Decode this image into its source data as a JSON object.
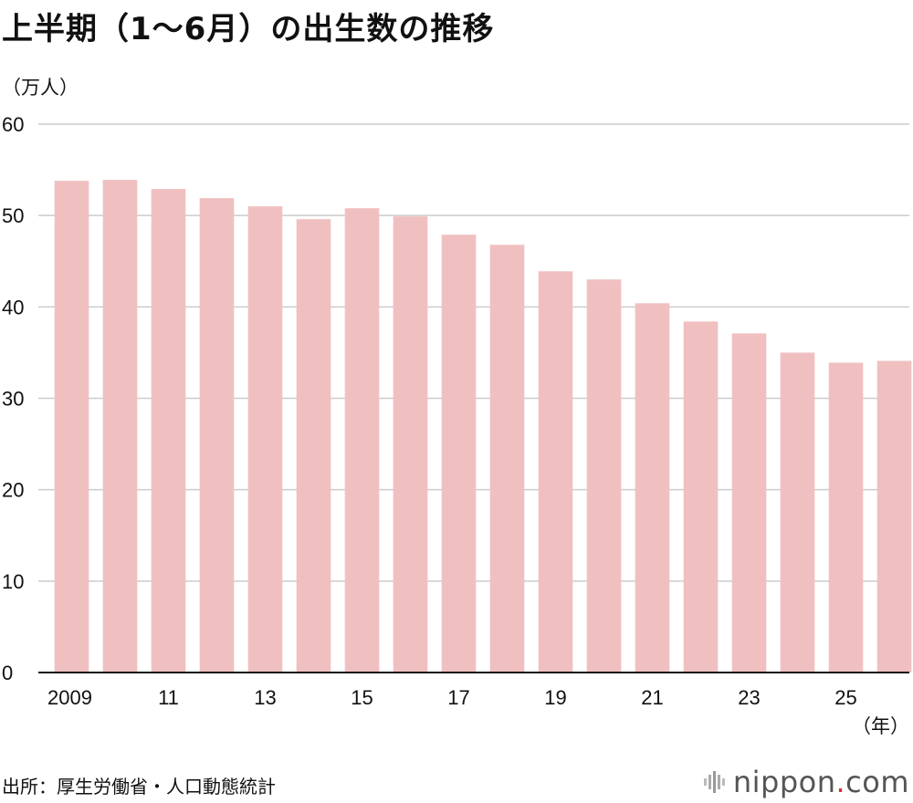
{
  "title": "上半期（1〜6月）の出生数の推移",
  "y_unit": "（万人）",
  "x_unit": "（年）",
  "source": "出所：厚生労働省・人口動態統計",
  "logo": {
    "word": "nippon",
    "dot": ".",
    "tld": "com"
  },
  "chart_data": {
    "type": "bar",
    "categories": [
      "2009",
      "2010",
      "2011",
      "2012",
      "2013",
      "2014",
      "2015",
      "2016",
      "2017",
      "2018",
      "2019",
      "2020",
      "2021",
      "2022",
      "2023",
      "2024",
      "2025",
      "2026"
    ],
    "x_tick_labels": [
      "2009",
      "",
      "11",
      "",
      "13",
      "",
      "15",
      "",
      "17",
      "",
      "19",
      "",
      "21",
      "",
      "23",
      "",
      "25",
      ""
    ],
    "values": [
      53.8,
      53.9,
      52.9,
      51.9,
      51.0,
      49.6,
      50.8,
      49.9,
      47.9,
      46.8,
      43.9,
      43.0,
      40.4,
      38.4,
      37.1,
      35.0,
      33.9,
      34.1
    ],
    "ylim": [
      0,
      60
    ],
    "y_ticks": [
      0,
      10,
      20,
      30,
      40,
      50,
      60
    ],
    "bar_color": "#f0c0c1",
    "grid": true,
    "title": "上半期（1〜6月）の出生数の推移",
    "ylabel": "（万人）",
    "xlabel": "（年）"
  }
}
